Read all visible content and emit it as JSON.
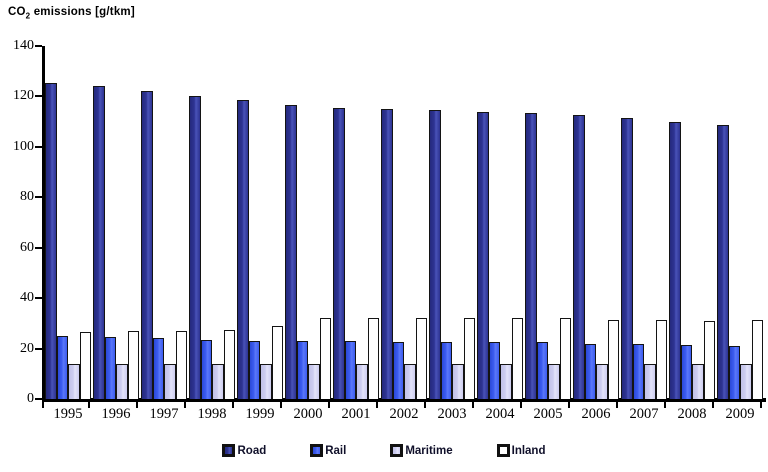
{
  "title": {
    "base": "CO",
    "subscript": "2",
    "suffix": " emissions [g/tkm]"
  },
  "chart_data": {
    "type": "bar",
    "title": "CO2 emissions [g/tkm]",
    "xlabel": "",
    "ylabel": "CO2 emissions [g/tkm]",
    "ylim": [
      0,
      140
    ],
    "ytick_step": 20,
    "yticks": [
      0,
      20,
      40,
      60,
      80,
      100,
      120,
      140
    ],
    "grid": false,
    "legend_position": "bottom",
    "categories": [
      "1995",
      "1996",
      "1997",
      "1998",
      "1999",
      "2000",
      "2001",
      "2002",
      "2003",
      "2004",
      "2005",
      "2006",
      "2007",
      "2008",
      "2009"
    ],
    "series": [
      {
        "name": "Road",
        "color": "#2e3191",
        "values": [
          125.5,
          124,
          122,
          120,
          118.5,
          116.5,
          115.5,
          115,
          114.5,
          114,
          113.5,
          112.5,
          111.5,
          110,
          108.5
        ]
      },
      {
        "name": "Rail",
        "color": "#3c5cee",
        "values": [
          25,
          24.5,
          24,
          23.5,
          23,
          23,
          23,
          22.5,
          22.5,
          22.5,
          22.5,
          22,
          22,
          21.5,
          21
        ]
      },
      {
        "name": "Maritime",
        "color": "#cfcff2",
        "values": [
          14,
          14,
          14,
          14,
          14,
          14,
          14,
          14,
          14,
          14,
          14,
          14,
          14,
          14,
          14
        ]
      },
      {
        "name": "Inland",
        "color": "#ffffff",
        "values": [
          26.5,
          27,
          27,
          27.5,
          29,
          32,
          32,
          32,
          32,
          32,
          32,
          31.5,
          31.5,
          31,
          31.5
        ]
      }
    ]
  }
}
